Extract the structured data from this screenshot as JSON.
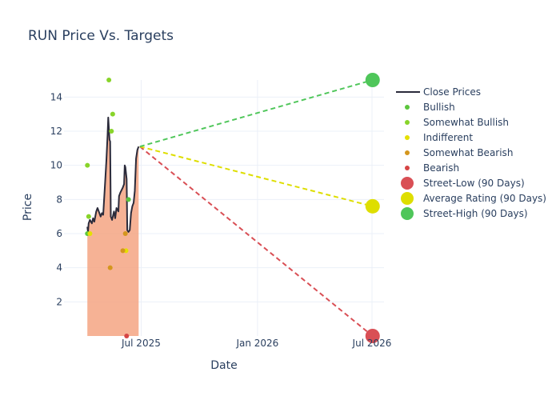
{
  "chart_data": {
    "type": "line",
    "title": "RUN Price Vs. Targets",
    "xlabel": "Date",
    "ylabel": "Price",
    "x_range": [
      "2025-03-01",
      "2026-07-20"
    ],
    "ylim": [
      0,
      15
    ],
    "x_ticks": [
      {
        "date": "2025-07-01",
        "label": "Jul 2025"
      },
      {
        "date": "2026-01-01",
        "label": "Jan 2026"
      },
      {
        "date": "2026-07-01",
        "label": "Jul 2026"
      }
    ],
    "y_ticks": [
      2,
      4,
      6,
      8,
      10,
      12,
      14
    ],
    "close_prices": {
      "name": "Close Prices",
      "color": "#2b2b3b",
      "fill_color": "#f4a582",
      "points": [
        [
          "2025-04-07",
          6.4
        ],
        [
          "2025-04-08",
          6.1
        ],
        [
          "2025-04-09",
          6.6
        ],
        [
          "2025-04-11",
          6.8
        ],
        [
          "2025-04-14",
          6.6
        ],
        [
          "2025-04-16",
          6.9
        ],
        [
          "2025-04-18",
          6.7
        ],
        [
          "2025-04-21",
          7.3
        ],
        [
          "2025-04-23",
          7.5
        ],
        [
          "2025-04-25",
          7.3
        ],
        [
          "2025-04-28",
          7.0
        ],
        [
          "2025-04-30",
          7.2
        ],
        [
          "2025-05-02",
          7.1
        ],
        [
          "2025-05-05",
          9.0
        ],
        [
          "2025-05-07",
          10.3
        ],
        [
          "2025-05-09",
          11.8
        ],
        [
          "2025-05-10",
          12.8
        ],
        [
          "2025-05-12",
          11.5
        ],
        [
          "2025-05-13",
          11.4
        ],
        [
          "2025-05-14",
          7.0
        ],
        [
          "2025-05-16",
          6.8
        ],
        [
          "2025-05-19",
          7.3
        ],
        [
          "2025-05-21",
          6.9
        ],
        [
          "2025-05-23",
          7.5
        ],
        [
          "2025-05-26",
          7.3
        ],
        [
          "2025-05-27",
          8.2
        ],
        [
          "2025-05-29",
          8.4
        ],
        [
          "2025-06-02",
          8.7
        ],
        [
          "2025-06-04",
          8.9
        ],
        [
          "2025-06-05",
          10.0
        ],
        [
          "2025-06-06",
          9.9
        ],
        [
          "2025-06-08",
          9.2
        ],
        [
          "2025-06-09",
          6.2
        ],
        [
          "2025-06-11",
          6.1
        ],
        [
          "2025-06-13",
          6.2
        ],
        [
          "2025-06-15",
          7.2
        ],
        [
          "2025-06-17",
          7.6
        ],
        [
          "2025-06-19",
          7.8
        ],
        [
          "2025-06-21",
          8.5
        ],
        [
          "2025-06-23",
          10.4
        ],
        [
          "2025-06-25",
          10.9
        ],
        [
          "2025-06-27",
          11.1
        ]
      ]
    },
    "ratings": [
      {
        "name": "Bullish",
        "color": "#5cc63d",
        "points": [
          [
            "2025-04-07",
            6.0
          ],
          [
            "2025-06-11",
            8.0
          ]
        ]
      },
      {
        "name": "Somewhat Bullish",
        "color": "#88d42a",
        "points": [
          [
            "2025-04-07",
            10.0
          ],
          [
            "2025-04-09",
            7.0
          ],
          [
            "2025-05-11",
            15.0
          ],
          [
            "2025-05-15",
            12.0
          ],
          [
            "2025-05-17",
            13.0
          ]
        ]
      },
      {
        "name": "Indifferent",
        "color": "#e5e000",
        "points": [
          [
            "2025-04-11",
            6.0
          ],
          [
            "2025-06-07",
            5.0
          ]
        ]
      },
      {
        "name": "Somewhat Bearish",
        "color": "#d4961e",
        "points": [
          [
            "2025-05-13",
            4.0
          ],
          [
            "2025-06-02",
            5.0
          ],
          [
            "2025-06-06",
            6.0
          ]
        ]
      },
      {
        "name": "Bearish",
        "color": "#d64545",
        "points": [
          [
            "2025-06-08",
            0.0
          ]
        ]
      }
    ],
    "targets": [
      {
        "name": "Street-Low (90 Days)",
        "color": "#d94f55",
        "line_color": "#d94f55",
        "from": [
          "2025-06-29",
          11.1
        ],
        "to": [
          "2026-07-02",
          0.0
        ]
      },
      {
        "name": "Average Rating (90 Days)",
        "color": "#dede00",
        "line_color": "#dede00",
        "from": [
          "2025-06-29",
          11.1
        ],
        "to": [
          "2026-07-02",
          7.6
        ]
      },
      {
        "name": "Street-High (90 Days)",
        "color": "#4fc65a",
        "line_color": "#4fc65a",
        "from": [
          "2025-06-29",
          11.1
        ],
        "to": [
          "2026-07-02",
          15.0
        ]
      }
    ],
    "legend_position": "right"
  }
}
